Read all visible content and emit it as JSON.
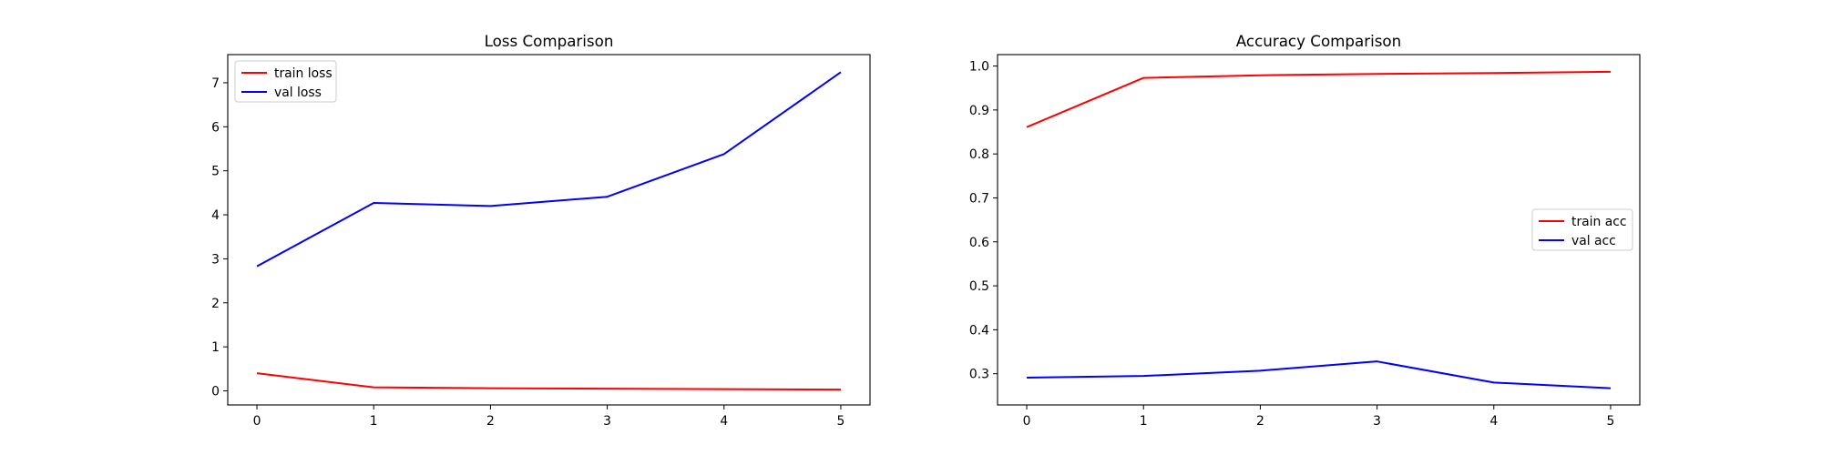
{
  "colors": {
    "red": "#ff0000",
    "blue": "#0000ff"
  },
  "chart_data": [
    {
      "type": "line",
      "title": "Loss Comparison",
      "xlabel": "",
      "ylabel": "",
      "x": [
        0,
        1,
        2,
        3,
        4,
        5
      ],
      "xticks": [
        0,
        1,
        2,
        3,
        4,
        5
      ],
      "yticks": [
        0,
        1,
        2,
        3,
        4,
        5,
        6,
        7
      ],
      "xlim": [
        -0.25,
        5.25
      ],
      "ylim": [
        -0.32,
        7.64
      ],
      "grid": false,
      "legend_position": "upper left",
      "series": [
        {
          "name": "train loss",
          "color": "#ff0000",
          "values": [
            0.4,
            0.08,
            0.06,
            0.05,
            0.04,
            0.03
          ]
        },
        {
          "name": "val loss",
          "color": "#0000ff",
          "values": [
            2.83,
            4.27,
            4.2,
            4.41,
            5.38,
            7.24
          ]
        }
      ]
    },
    {
      "type": "line",
      "title": "Accuracy Comparison",
      "xlabel": "",
      "ylabel": "",
      "x": [
        0,
        1,
        2,
        3,
        4,
        5
      ],
      "xticks": [
        0,
        1,
        2,
        3,
        4,
        5
      ],
      "yticks": [
        0.3,
        0.4,
        0.5,
        0.6,
        0.7,
        0.8,
        0.9,
        1.0
      ],
      "ytick_labels": [
        "0.3",
        "0.4",
        "0.5",
        "0.6",
        "0.7",
        "0.8",
        "0.9",
        "1.0"
      ],
      "xlim": [
        -0.25,
        5.25
      ],
      "ylim": [
        0.229,
        1.026
      ],
      "grid": false,
      "legend_position": "center right",
      "series": [
        {
          "name": "train acc",
          "color": "#ff0000",
          "values": [
            0.861,
            0.973,
            0.979,
            0.982,
            0.984,
            0.987
          ]
        },
        {
          "name": "val acc",
          "color": "#0000ff",
          "values": [
            0.291,
            0.295,
            0.307,
            0.328,
            0.28,
            0.267
          ]
        }
      ]
    }
  ]
}
